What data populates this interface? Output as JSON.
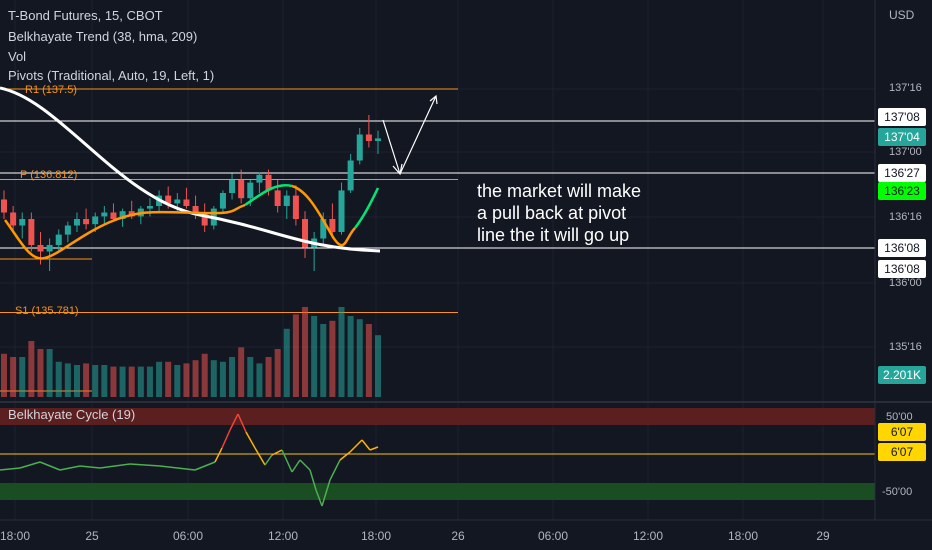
{
  "header": {
    "symbol_line": "T-Bond Futures, 15, CBOT",
    "indicator_1": "Belkhayate Trend (38, hma, 209)",
    "indicator_2": "Vol",
    "indicator_3": "Pivots (Traditional, Auto, 19, Left, 1)"
  },
  "currency": "USD",
  "annotation": {
    "lines": [
      "the market will make",
      "a pull back at pivot",
      "line the it will go up"
    ]
  },
  "pivots": {
    "r1_label": "R1 (137.5)",
    "p_label": "P (136.812)",
    "s1_label": "S1 (135.781)"
  },
  "price_axis": {
    "ticks": [
      "137'16",
      "137'00",
      "136'16",
      "136'00",
      "135'16"
    ],
    "tags": {
      "line_upper": "137'08",
      "last_price": "137'04",
      "line_pivot": "136'27",
      "trend_value": "136'23",
      "line_lower": "136'08",
      "line_lower_2": "136'08",
      "volume": "2.201K"
    }
  },
  "cycle_panel": {
    "title": "Belkhayate Cycle  (19)",
    "axis_top": "50'00",
    "axis_bottom": "-50'00",
    "value_1": "6'07",
    "value_2": "6'07"
  },
  "time_axis": {
    "labels": [
      "18:00",
      "25",
      "06:00",
      "12:00",
      "18:00",
      "26",
      "06:00",
      "12:00",
      "18:00",
      "29"
    ]
  },
  "colors": {
    "background": "#131722",
    "up": "#26a69a",
    "down": "#ef5350",
    "pivot": "#f7931a",
    "trend_main": "#ffffff",
    "trend_up": "#00e676",
    "trend_down": "#ff9800",
    "cycle_hot": "#f44336",
    "cycle_cool": "#4caf50"
  },
  "chart_data": [
    {
      "type": "candlestick",
      "title": "T-Bond Futures, 15, CBOT",
      "xlabel": "",
      "ylabel": "USD",
      "ylim": [
        135.25,
        137.6
      ],
      "y_ticks": [
        "137'16",
        "137'00",
        "136'16",
        "136'00",
        "135'16"
      ],
      "x_ticks": [
        "18:00",
        "25",
        "06:00",
        "12:00",
        "18:00",
        "26",
        "06:00",
        "12:00",
        "18:00",
        "29"
      ],
      "horizontal_lines": [
        {
          "label": "R1 (137.5)",
          "value": 137.5
        },
        {
          "label": "P (136.812)",
          "value": 136.812
        },
        {
          "label": "S1 (135.781)",
          "value": 135.781
        },
        {
          "label": "137'08",
          "value": 137.25
        },
        {
          "label": "136'27",
          "value": 136.84
        },
        {
          "label": "136'08",
          "value": 136.25
        }
      ],
      "ohlc": [
        [
          136.65,
          136.72,
          136.5,
          136.55
        ],
        [
          136.55,
          136.6,
          136.4,
          136.45
        ],
        [
          136.45,
          136.55,
          136.35,
          136.5
        ],
        [
          136.5,
          136.55,
          136.25,
          136.3
        ],
        [
          136.3,
          136.4,
          136.15,
          136.25
        ],
        [
          136.25,
          136.35,
          136.1,
          136.3
        ],
        [
          136.3,
          136.42,
          136.25,
          136.38
        ],
        [
          136.38,
          136.48,
          136.32,
          136.45
        ],
        [
          136.45,
          136.55,
          136.4,
          136.5
        ],
        [
          136.5,
          136.58,
          136.42,
          136.46
        ],
        [
          136.46,
          136.55,
          136.4,
          136.52
        ],
        [
          136.52,
          136.6,
          136.45,
          136.55
        ],
        [
          136.55,
          136.62,
          136.48,
          136.5
        ],
        [
          136.5,
          136.58,
          136.44,
          136.56
        ],
        [
          136.56,
          136.64,
          136.5,
          136.52
        ],
        [
          136.52,
          136.6,
          136.46,
          136.58
        ],
        [
          136.58,
          136.66,
          136.52,
          136.6
        ],
        [
          136.6,
          136.72,
          136.55,
          136.68
        ],
        [
          136.68,
          136.75,
          136.58,
          136.62
        ],
        [
          136.62,
          136.7,
          136.55,
          136.65
        ],
        [
          136.65,
          136.74,
          136.58,
          136.6
        ],
        [
          136.6,
          136.68,
          136.5,
          136.55
        ],
        [
          136.55,
          136.62,
          136.4,
          136.45
        ],
        [
          136.45,
          136.6,
          136.42,
          136.58
        ],
        [
          136.58,
          136.72,
          136.55,
          136.7
        ],
        [
          136.7,
          136.85,
          136.65,
          136.8
        ],
        [
          136.8,
          136.88,
          136.62,
          136.66
        ],
        [
          136.66,
          136.8,
          136.6,
          136.78
        ],
        [
          136.78,
          136.86,
          136.7,
          136.84
        ],
        [
          136.84,
          136.88,
          136.68,
          136.72
        ],
        [
          136.72,
          136.8,
          136.55,
          136.6
        ],
        [
          136.6,
          136.72,
          136.5,
          136.68
        ],
        [
          136.68,
          136.76,
          136.45,
          136.5
        ],
        [
          136.5,
          136.56,
          136.2,
          136.28
        ],
        [
          136.28,
          136.4,
          136.1,
          136.35
        ],
        [
          136.35,
          136.55,
          136.3,
          136.5
        ],
        [
          136.5,
          136.62,
          136.35,
          136.4
        ],
        [
          136.4,
          136.78,
          136.38,
          136.72
        ],
        [
          136.72,
          137.0,
          136.7,
          136.95
        ],
        [
          136.95,
          137.2,
          136.92,
          137.15
        ],
        [
          137.15,
          137.3,
          137.05,
          137.1
        ],
        [
          137.1,
          137.18,
          137.0,
          137.12
        ]
      ],
      "volume_max_label": "2.201K"
    },
    {
      "type": "line",
      "title": "Belkhayate Cycle  (19)",
      "ylim": [
        -80,
        80
      ],
      "bands": [
        50,
        -50
      ],
      "level_labels": [
        "50'00",
        "-50'00"
      ],
      "current_values": [
        "6'07",
        "6'07"
      ]
    }
  ]
}
